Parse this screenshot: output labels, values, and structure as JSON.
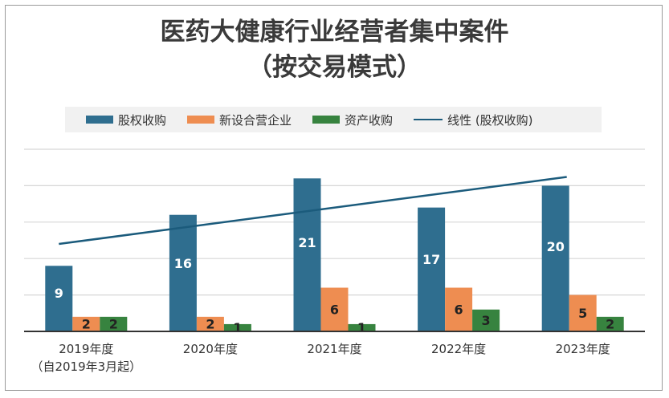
{
  "chart_data": {
    "type": "bar",
    "title_line1": "医药大健康行业经营者集中案件",
    "title_line2": "（按交易模式）",
    "categories": [
      "2019年度",
      "2020年度",
      "2021年度",
      "2022年度",
      "2023年度"
    ],
    "category_subtitles": [
      "（自2019年3月起）",
      "",
      "",
      "",
      ""
    ],
    "series": [
      {
        "name": "股权收购",
        "color": "#2f6e8f",
        "values": [
          9,
          16,
          21,
          17,
          20
        ]
      },
      {
        "name": "新设合营企业",
        "color": "#ee8d51",
        "values": [
          2,
          2,
          6,
          6,
          5
        ]
      },
      {
        "name": "资产收购",
        "color": "#37833f",
        "values": [
          2,
          1,
          1,
          3,
          2
        ]
      }
    ],
    "trendline": {
      "name": "线性 (股权收购)",
      "color": "#1b5b7c",
      "start": 12,
      "end": 21.2
    },
    "ylim": [
      0,
      25
    ],
    "gridlines": [
      5,
      10,
      15,
      20,
      25
    ],
    "xlabel": "",
    "ylabel": ""
  }
}
